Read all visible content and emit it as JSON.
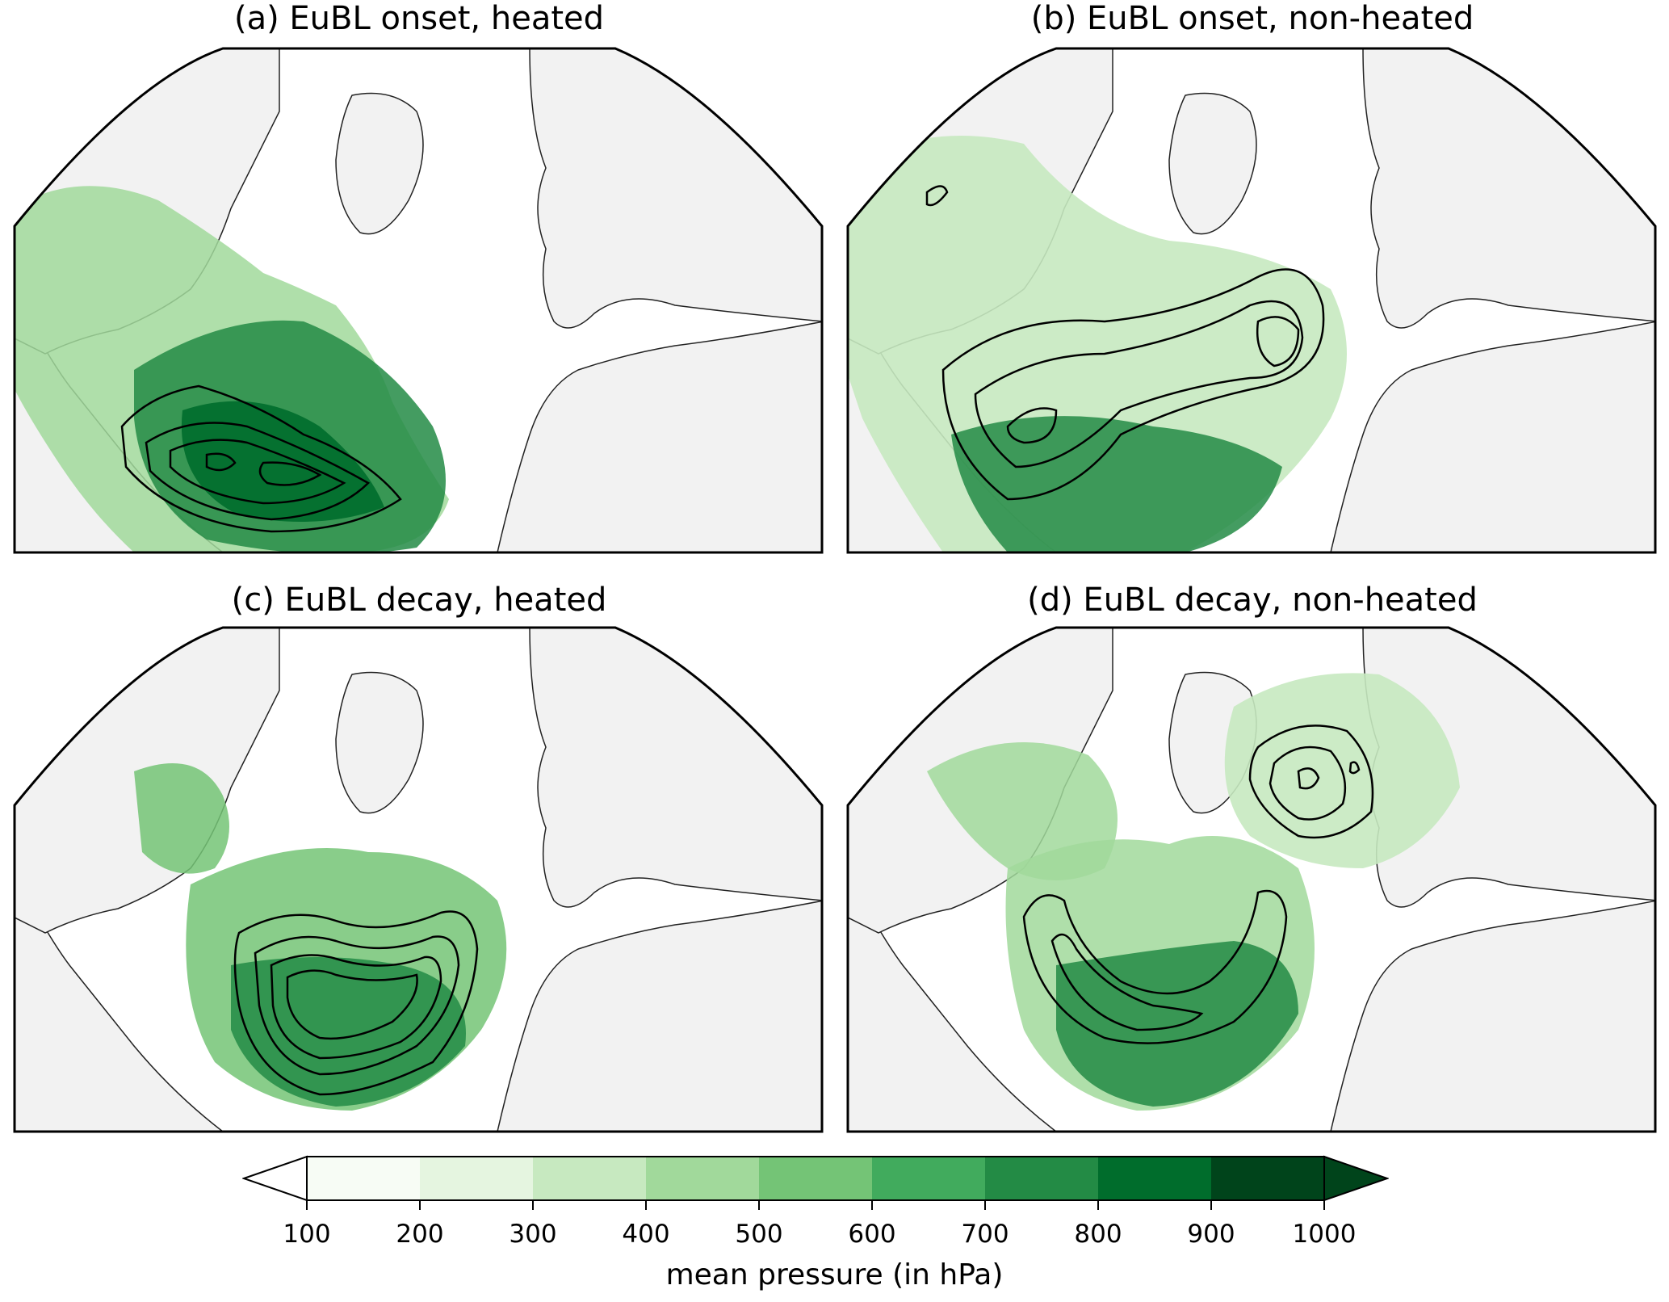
{
  "panels": [
    {
      "id": "a",
      "title": "(a) EuBL onset, heated"
    },
    {
      "id": "b",
      "title": "(b) EuBL onset, non-heated"
    },
    {
      "id": "c",
      "title": "(c) EuBL decay, heated"
    },
    {
      "id": "d",
      "title": "(d) EuBL decay, non-heated"
    }
  ],
  "colorbar": {
    "label": "mean pressure (in hPa)",
    "ticks": [
      "100",
      "200",
      "300",
      "400",
      "500",
      "600",
      "700",
      "800",
      "900",
      "1000"
    ],
    "colors": [
      "#f7fcf5",
      "#e5f5e0",
      "#c7e9c0",
      "#a1d99b",
      "#74c476",
      "#41ab5d",
      "#238b45",
      "#006d2c",
      "#00441b"
    ],
    "extend": "both"
  },
  "colors": {
    "land": "#f2f2f2",
    "ocean": "#ffffff",
    "contour": "#000000"
  }
}
